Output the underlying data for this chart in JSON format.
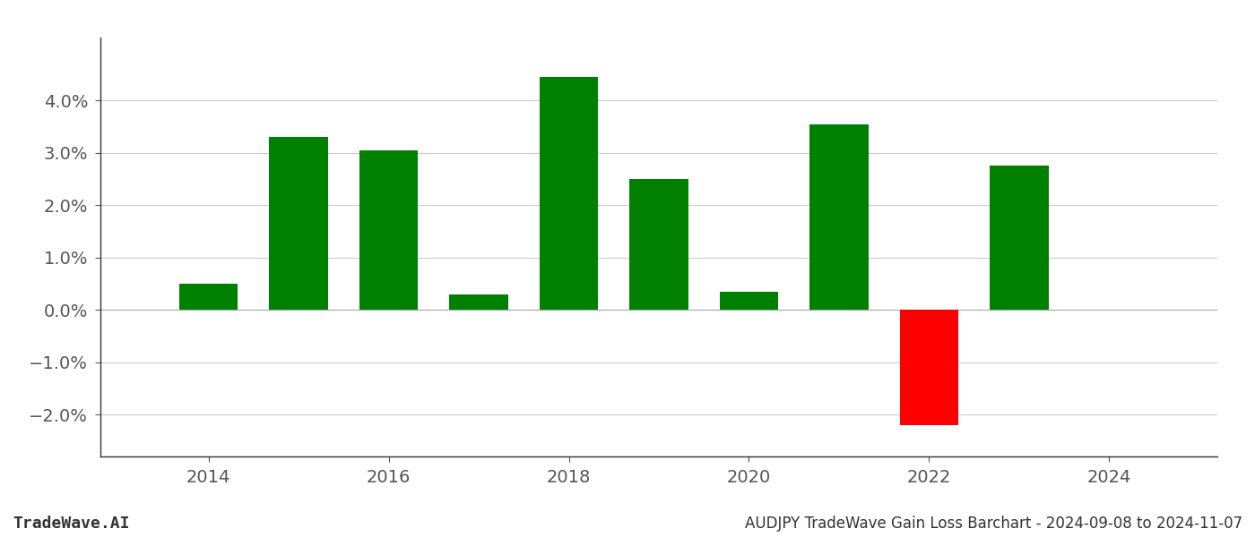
{
  "years": [
    2014,
    2015,
    2016,
    2017,
    2018,
    2019,
    2020,
    2021,
    2022,
    2023
  ],
  "values": [
    0.005,
    0.033,
    0.0305,
    0.003,
    0.0445,
    0.025,
    0.0035,
    0.0355,
    -0.022,
    0.0275
  ],
  "bar_colors": [
    "#008000",
    "#008000",
    "#008000",
    "#008000",
    "#008000",
    "#008000",
    "#008000",
    "#008000",
    "#ff0000",
    "#008000"
  ],
  "title": "AUDJPY TradeWave Gain Loss Barchart - 2024-09-08 to 2024-11-07",
  "watermark": "TradeWave.AI",
  "ylim": [
    -0.028,
    0.052
  ],
  "yticks": [
    -0.02,
    -0.01,
    0.0,
    0.01,
    0.02,
    0.03,
    0.04
  ],
  "xticks": [
    2014,
    2016,
    2018,
    2020,
    2022,
    2024
  ],
  "xlim": [
    2012.8,
    2025.2
  ],
  "background_color": "#ffffff",
  "grid_color": "#cccccc",
  "bar_width": 0.65
}
